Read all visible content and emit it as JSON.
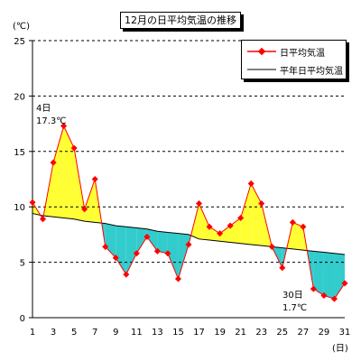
{
  "chart_data": {
    "type": "line",
    "title": "12月の日平均気温の推移",
    "ylabel": "(℃)",
    "xlabel": "(日)",
    "ylim": [
      0,
      25
    ],
    "yticks": [
      0,
      5,
      10,
      15,
      20,
      25
    ],
    "x": [
      1,
      2,
      3,
      4,
      5,
      6,
      7,
      8,
      9,
      10,
      11,
      12,
      13,
      14,
      15,
      16,
      17,
      18,
      19,
      20,
      21,
      22,
      23,
      24,
      25,
      26,
      27,
      28,
      29,
      30,
      31
    ],
    "xtick_labels": [
      "1",
      "3",
      "5",
      "7",
      "9",
      "11",
      "13",
      "15",
      "17",
      "19",
      "21",
      "23",
      "25",
      "27",
      "29",
      "31"
    ],
    "grid": "horizontal dashed",
    "legend_position": "top-right",
    "series": [
      {
        "name": "日平均気温",
        "color": "#ff0000",
        "values": [
          10.4,
          8.9,
          14.0,
          17.3,
          15.3,
          9.8,
          12.5,
          6.4,
          5.4,
          3.9,
          5.8,
          7.3,
          6.0,
          5.8,
          3.5,
          6.6,
          10.3,
          8.2,
          7.6,
          8.3,
          9.0,
          12.1,
          10.3,
          6.4,
          4.5,
          8.6,
          8.2,
          2.6,
          2.0,
          1.7,
          3.1
        ]
      },
      {
        "name": "平年日平均気温",
        "color": "#000000",
        "values": [
          9.4,
          9.2,
          9.1,
          9.0,
          8.9,
          8.7,
          8.6,
          8.5,
          8.3,
          8.2,
          8.1,
          8.0,
          7.8,
          7.7,
          7.6,
          7.5,
          7.1,
          7.0,
          6.9,
          6.8,
          6.7,
          6.6,
          6.5,
          6.4,
          6.3,
          6.2,
          6.1,
          6.0,
          5.9,
          5.8,
          5.7
        ]
      }
    ],
    "fill_above_color": "#ffff33",
    "fill_below_color": "#33cccc",
    "annotations": [
      {
        "day": "4日",
        "value": "17.3℃"
      },
      {
        "day": "30日",
        "value": "1.7℃"
      }
    ]
  }
}
